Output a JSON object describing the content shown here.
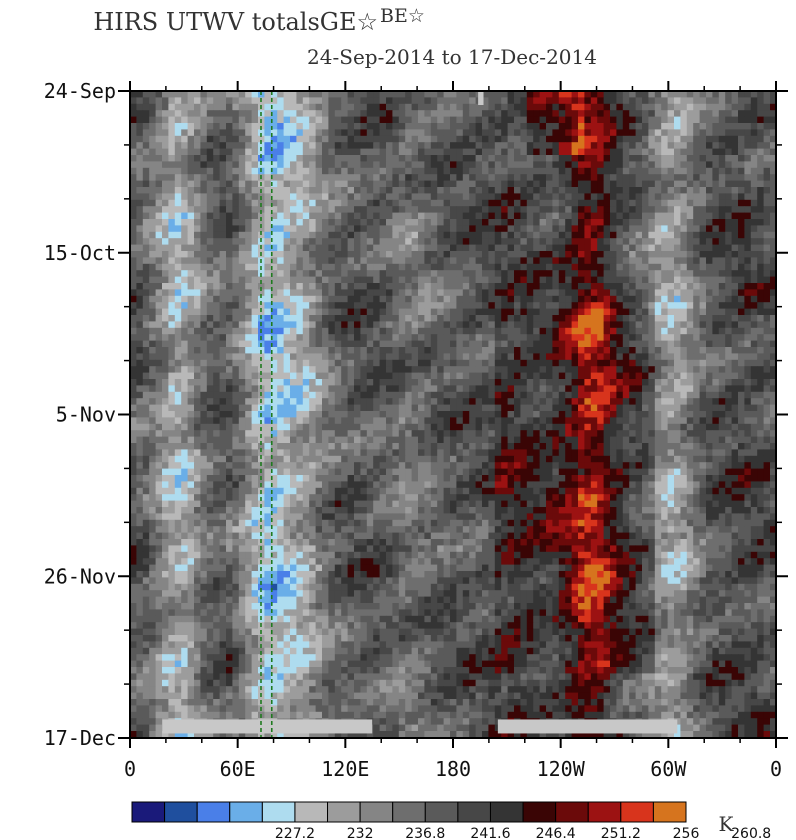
{
  "chart_data": {
    "type": "heatmap",
    "title": "HIRS UTWV totalsGE☆BE☆",
    "title_main": "HIRS UTWV totalsGE☆",
    "title_sup": "BE☆",
    "subtitle": "24-Sep-2014 to 17-Dec-2014",
    "x_tick_labels": [
      "0",
      "60E",
      "120E",
      "180",
      "120W",
      "60W",
      "0"
    ],
    "x_ticks_deg": [
      0,
      60,
      120,
      180,
      240,
      300,
      360
    ],
    "y_tick_labels": [
      "24-Sep",
      "15-Oct",
      "5-Nov",
      "26-Nov",
      "17-Dec"
    ],
    "y_ticks_day": [
      0,
      21,
      42,
      63,
      84
    ],
    "xlim": [
      0,
      360
    ],
    "ylim": [
      0,
      84
    ],
    "colorbar": {
      "unit": "K",
      "labels": [
        "227.2",
        "232",
        "236.8",
        "241.6",
        "246.4",
        "251.2",
        "256",
        "260.8"
      ],
      "colors": [
        "#1a1a7a",
        "#1f4f9e",
        "#4a7fe8",
        "#6aaee8",
        "#aedcef",
        "#b8b8b8",
        "#9c9c9c",
        "#858585",
        "#6e6e6e",
        "#5a5a5a",
        "#474747",
        "#343434",
        "#3a0505",
        "#6b0a0a",
        "#9c1212",
        "#d8341c",
        "#d6741e"
      ]
    },
    "bands": [
      {
        "lon": 25,
        "level": 5.5
      },
      {
        "lon": 75,
        "level": 4.5
      },
      {
        "lon": 95,
        "level": 6.5
      },
      {
        "lon": 155,
        "level": 8
      },
      {
        "lon": 210,
        "level": 10
      },
      {
        "lon": 255,
        "level": 13
      },
      {
        "lon": 300,
        "level": 6
      },
      {
        "lon": 340,
        "level": 10
      }
    ],
    "missing_data_segments": [
      {
        "lon_start": 18,
        "lon_end": 135,
        "day": 82.5
      },
      {
        "lon_start": 205,
        "lon_end": 305,
        "day": 82.5
      },
      {
        "lon_start": 194,
        "lon_end": 197,
        "day": 0.5
      }
    ],
    "reference_lines_lon": [
      73,
      79
    ]
  }
}
